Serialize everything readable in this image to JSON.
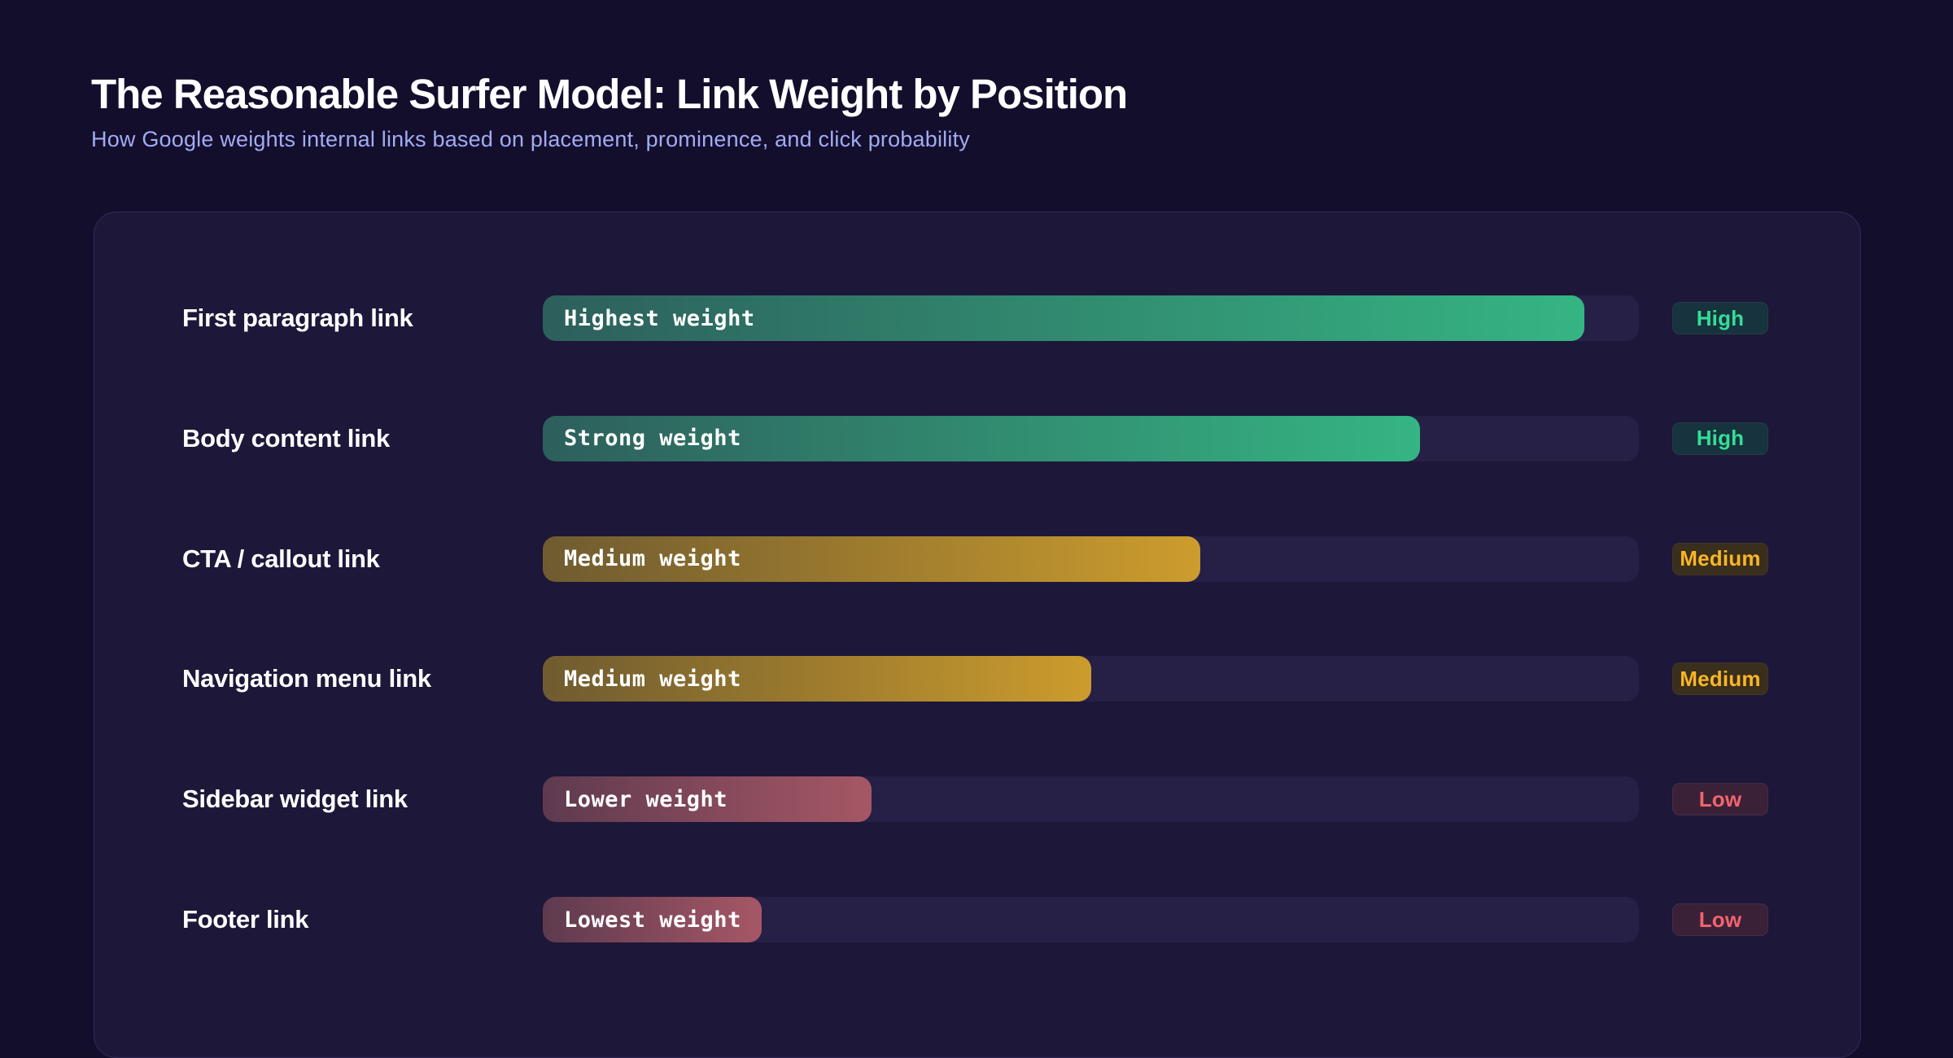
{
  "header": {
    "title": "The Reasonable Surfer Model: Link Weight by Position",
    "subtitle": "How Google weights internal links based on placement, prominence, and click probability"
  },
  "chart_data": {
    "type": "bar",
    "orientation": "horizontal",
    "title": "The Reasonable Surfer Model: Link Weight by Position",
    "subtitle": "How Google weights internal links based on placement, prominence, and click probability",
    "value_note": "relative link weight shown as filled fraction of track",
    "xlim": [
      0,
      100
    ],
    "grid": false,
    "legend": false,
    "rows": [
      {
        "label": "First paragraph link",
        "bar_text": "Highest weight",
        "value_pct": 95,
        "tier": "High",
        "gradient_start": "#2d5f5c",
        "gradient_end": "#35b583"
      },
      {
        "label": "Body content link",
        "bar_text": "Strong weight",
        "value_pct": 80,
        "tier": "High",
        "gradient_start": "#2d5f5c",
        "gradient_end": "#35b583"
      },
      {
        "label": "CTA / callout link",
        "bar_text": "Medium weight",
        "value_pct": 60,
        "tier": "Medium",
        "gradient_start": "#6f5b30",
        "gradient_end": "#cc9c2d"
      },
      {
        "label": "Navigation menu link",
        "bar_text": "Medium weight",
        "value_pct": 50,
        "tier": "Medium",
        "gradient_start": "#6f5b30",
        "gradient_end": "#cc9c2d"
      },
      {
        "label": "Sidebar widget link",
        "bar_text": "Lower weight",
        "value_pct": 30,
        "tier": "Low",
        "gradient_start": "#5e3a4f",
        "gradient_end": "#a65765"
      },
      {
        "label": "Footer link",
        "bar_text": "Lowest weight",
        "value_pct": 20,
        "tier": "Low",
        "gradient_start": "#5e3a4f",
        "gradient_end": "#a65765"
      }
    ],
    "tiers": {
      "High": {
        "label": "High",
        "text_color": "#35dd98",
        "bg_color": "#17333d"
      },
      "Medium": {
        "label": "Medium",
        "text_color": "#f7b626",
        "bg_color": "#3a2e1c"
      },
      "Low": {
        "label": "Low",
        "text_color": "#f2646e",
        "bg_color": "#3b2138"
      }
    },
    "colors": {
      "page_bg": "#140e2d",
      "card_bg": "#1d1739",
      "card_border": "#322b55",
      "track": "#262047",
      "title_text": "#ffffff",
      "subtitle_text": "#a2acf2"
    }
  }
}
